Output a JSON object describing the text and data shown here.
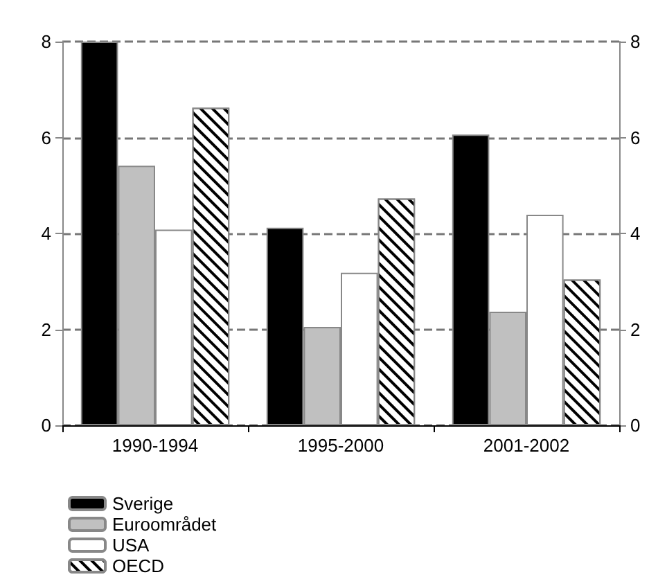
{
  "chart_data": {
    "type": "bar",
    "categories": [
      "1990-1994",
      "1995-2000",
      "2001-2002"
    ],
    "series": [
      {
        "name": "Sverige",
        "color": "#000000",
        "values": [
          8.0,
          4.12,
          6.06
        ]
      },
      {
        "name": "Euroområdet",
        "color": "#c0c0c0",
        "values": [
          5.41,
          2.05,
          2.37
        ]
      },
      {
        "name": "USA",
        "color": "#ffffff",
        "values": [
          4.08,
          3.18,
          4.39
        ]
      },
      {
        "name": "OECD",
        "color": "#ffffff",
        "values": [
          6.62,
          4.73,
          3.04
        ]
      }
    ],
    "ylim": [
      0,
      8
    ],
    "yticks": [
      0,
      2,
      4,
      6,
      8
    ],
    "y2lim": [
      0,
      8
    ],
    "y2ticks": [
      0,
      2,
      4,
      6,
      8
    ],
    "grid": "y",
    "legend": "bottom left"
  }
}
